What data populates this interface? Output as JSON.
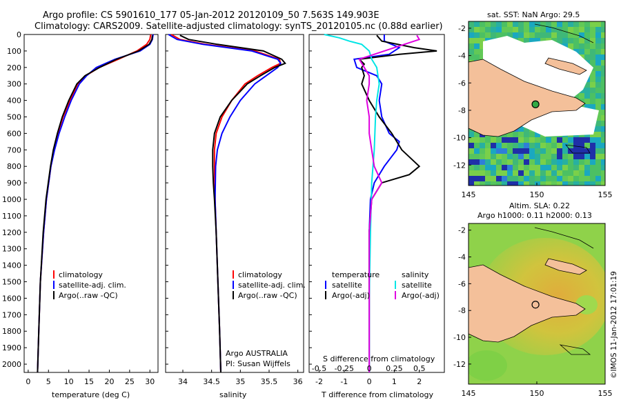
{
  "header": {
    "title_line1": "Argo profile: CS 5901610_177 05-Jan-2012 20120109_50 7.563S 149.903E",
    "title_line2": "Climatology: CARS2009. Satellite-adjusted climatology: synTS_20120105.nc (0.88d earlier)"
  },
  "colors": {
    "climatology": "#ff0000",
    "satellite": "#0000ff",
    "argo": "#000000",
    "satellite_salinity": "#00e5e5",
    "argo_salinity": "#e000e0",
    "land": "#f4c09a"
  },
  "chart_data": [
    {
      "type": "line",
      "panel": "temperature",
      "xlabel": "temperature (deg C)",
      "ylabel": "",
      "xlim": [
        -1,
        32
      ],
      "ylim": [
        2050,
        0
      ],
      "x_ticks": [
        0,
        5,
        10,
        15,
        20,
        25,
        30
      ],
      "y_ticks": [
        0,
        100,
        200,
        300,
        400,
        500,
        600,
        700,
        800,
        900,
        1000,
        1100,
        1200,
        1300,
        1400,
        1500,
        1600,
        1700,
        1800,
        1900,
        2000
      ],
      "legend": [
        "climatology",
        "satellite-adj. clim.",
        "Argo(..raw -QC)"
      ],
      "legend_position": "lower-right",
      "series": [
        {
          "name": "climatology",
          "color": "#ff0000",
          "depth": [
            0,
            30,
            60,
            100,
            150,
            200,
            250,
            300,
            400,
            500,
            600,
            700,
            800,
            1000,
            1200,
            1500,
            1800,
            2050
          ],
          "values": [
            30.2,
            30.0,
            29.2,
            26.8,
            22.2,
            17.5,
            14.2,
            12.2,
            10.3,
            8.6,
            7.3,
            6.4,
            5.6,
            4.5,
            3.8,
            3.0,
            2.6,
            2.3
          ]
        },
        {
          "name": "satellite-adj. clim.",
          "color": "#0000ff",
          "depth": [
            0,
            30,
            60,
            100,
            150,
            200,
            250,
            300,
            400,
            500,
            600,
            700,
            800,
            1000,
            1200,
            1500,
            1800,
            2050
          ],
          "values": [
            30.8,
            30.6,
            30.0,
            27.6,
            21.4,
            16.8,
            14.4,
            12.6,
            10.6,
            9.0,
            7.6,
            6.5,
            5.6,
            4.5,
            3.8,
            3.0,
            2.6,
            2.3
          ]
        },
        {
          "name": "Argo(..raw -QC)",
          "color": "#000000",
          "depth": [
            5,
            30,
            60,
            100,
            150,
            200,
            250,
            300,
            400,
            500,
            600,
            700,
            800,
            1000,
            1200,
            1500,
            1800,
            2050
          ],
          "values": [
            30.6,
            30.5,
            29.8,
            27.2,
            21.8,
            17.6,
            14.0,
            12.0,
            10.0,
            8.4,
            7.2,
            6.2,
            5.5,
            4.4,
            3.7,
            3.0,
            2.6,
            2.3
          ]
        }
      ]
    },
    {
      "type": "line",
      "panel": "salinity",
      "xlabel": "salinity",
      "xlim": [
        33.7,
        36.1
      ],
      "ylim": [
        2050,
        0
      ],
      "x_ticks": [
        34,
        34.5,
        35,
        35.5,
        36
      ],
      "legend": [
        "climatology",
        "satellite-adj. clim.",
        "Argo(..raw -QC)"
      ],
      "legend_position": "lower-right",
      "annotation_line1": "Argo AUSTRALIA",
      "annotation_line2": "PI: Susan Wijffels",
      "series": [
        {
          "name": "climatology",
          "color": "#ff0000",
          "depth": [
            0,
            30,
            60,
            100,
            150,
            175,
            200,
            250,
            300,
            400,
            500,
            600,
            700,
            800,
            1000,
            1200,
            1500,
            1800,
            2050
          ],
          "values": [
            33.8,
            33.95,
            34.4,
            35.25,
            35.68,
            35.7,
            35.55,
            35.3,
            35.08,
            34.85,
            34.68,
            34.58,
            34.55,
            34.55,
            34.56,
            34.58,
            34.61,
            34.64,
            34.66
          ]
        },
        {
          "name": "satellite-adj. clim.",
          "color": "#0000ff",
          "depth": [
            0,
            30,
            60,
            100,
            150,
            175,
            200,
            250,
            300,
            400,
            500,
            600,
            700,
            800,
            1000,
            1200,
            1500,
            1800,
            2050
          ],
          "values": [
            33.75,
            33.9,
            34.35,
            35.2,
            35.65,
            35.7,
            35.65,
            35.45,
            35.25,
            35.0,
            34.82,
            34.68,
            34.6,
            34.57,
            34.56,
            34.58,
            34.61,
            34.64,
            34.66
          ]
        },
        {
          "name": "Argo(..raw -QC)",
          "color": "#000000",
          "depth": [
            5,
            30,
            60,
            100,
            150,
            175,
            200,
            250,
            300,
            400,
            500,
            600,
            700,
            800,
            900,
            1000,
            1200,
            1500,
            1800,
            2050
          ],
          "values": [
            33.95,
            34.1,
            34.6,
            35.4,
            35.72,
            35.78,
            35.6,
            35.35,
            35.12,
            34.85,
            34.65,
            34.55,
            34.52,
            34.52,
            34.53,
            34.55,
            34.58,
            34.61,
            34.64,
            34.66
          ]
        }
      ]
    },
    {
      "type": "line",
      "panel": "differences",
      "xlabel": "T difference from climatology",
      "xlabel_top": "S difference from climatology",
      "xlim": [
        -2.4,
        3.0
      ],
      "ylim": [
        2050,
        0
      ],
      "x_ticks": [
        -2,
        -1,
        0,
        1,
        2
      ],
      "x_ticks_s": [
        -0.5,
        -0.25,
        0,
        0.25,
        0.5
      ],
      "legend_temperature": [
        "temperature",
        "satellite",
        "Argo(-adj)"
      ],
      "legend_salinity": [
        "salinity",
        "satellite",
        "Argo(-adj)"
      ],
      "series": [
        {
          "name": "satellite",
          "group": "temperature",
          "color": "#0000ff",
          "depth": [
            0,
            40,
            80,
            120,
            150,
            200,
            250,
            300,
            400,
            500,
            600,
            650,
            700,
            800,
            900,
            1000,
            1200,
            1500,
            2050
          ],
          "values": [
            0.6,
            0.6,
            1.2,
            0.8,
            -0.6,
            -0.5,
            0.3,
            0.5,
            0.4,
            0.5,
            0.8,
            1.2,
            1.1,
            0.6,
            0.2,
            0.05,
            0.0,
            0.0,
            0.0
          ]
        },
        {
          "name": "Argo(-adj)",
          "group": "temperature",
          "color": "#000000",
          "depth": [
            5,
            40,
            80,
            100,
            120,
            150,
            180,
            200,
            250,
            300,
            400,
            500,
            600,
            700,
            800,
            850,
            900,
            1000,
            1200,
            1500,
            2050
          ],
          "values": [
            0.3,
            0.5,
            1.8,
            2.7,
            1.2,
            -0.4,
            -0.2,
            -0.3,
            -0.2,
            -0.3,
            0.0,
            0.4,
            0.9,
            1.3,
            2.0,
            1.6,
            0.5,
            0.1,
            0.0,
            0.0,
            0.0
          ]
        },
        {
          "name": "satellite",
          "group": "salinity",
          "color": "#00e5e5",
          "depth": [
            0,
            20,
            40,
            60,
            100,
            150,
            200,
            300,
            400,
            500,
            700,
            900,
            1200,
            1600,
            2050
          ],
          "values": [
            -1.8,
            -1.2,
            -0.8,
            -0.3,
            0.0,
            0.1,
            0.3,
            0.4,
            0.3,
            0.25,
            0.2,
            0.1,
            0.05,
            0.0,
            0.0
          ]
        },
        {
          "name": "Argo(-adj)",
          "group": "salinity",
          "color": "#e000e0",
          "depth": [
            5,
            30,
            60,
            100,
            150,
            200,
            250,
            300,
            400,
            500,
            600,
            700,
            800,
            900,
            1000,
            1200,
            1600,
            2050
          ],
          "values": [
            1.9,
            2.0,
            1.4,
            0.6,
            -0.4,
            -0.2,
            0.0,
            0.0,
            -0.1,
            0.0,
            0.0,
            0.1,
            0.2,
            0.5,
            0.1,
            0.0,
            0.0,
            0.0
          ]
        }
      ]
    },
    {
      "type": "heatmap",
      "panel": "sst_map",
      "title": "sat. SST: NaN Argo: 29.5",
      "xlim": [
        145,
        155
      ],
      "ylim": [
        -13.5,
        -1.5
      ],
      "x_ticks": [
        145,
        150,
        155
      ],
      "y_ticks": [
        -2,
        -4,
        -6,
        -8,
        -10,
        -12
      ],
      "float_lon": 149.903,
      "float_lat": -7.563
    },
    {
      "type": "heatmap",
      "panel": "sla_map",
      "title_line1": "Altim. SLA: 0.22",
      "title_line2": "Argo h1000: 0.11 h2000: 0.13",
      "xlim": [
        145,
        155
      ],
      "ylim": [
        -13.5,
        -1.5
      ],
      "x_ticks": [
        145,
        150,
        155
      ],
      "y_ticks": [
        -2,
        -4,
        -6,
        -8,
        -10,
        -12
      ],
      "float_lon": 149.903,
      "float_lat": -7.563
    }
  ],
  "footer": {
    "credit": "©IMOS 11-Jan-2012 17:01:19"
  }
}
